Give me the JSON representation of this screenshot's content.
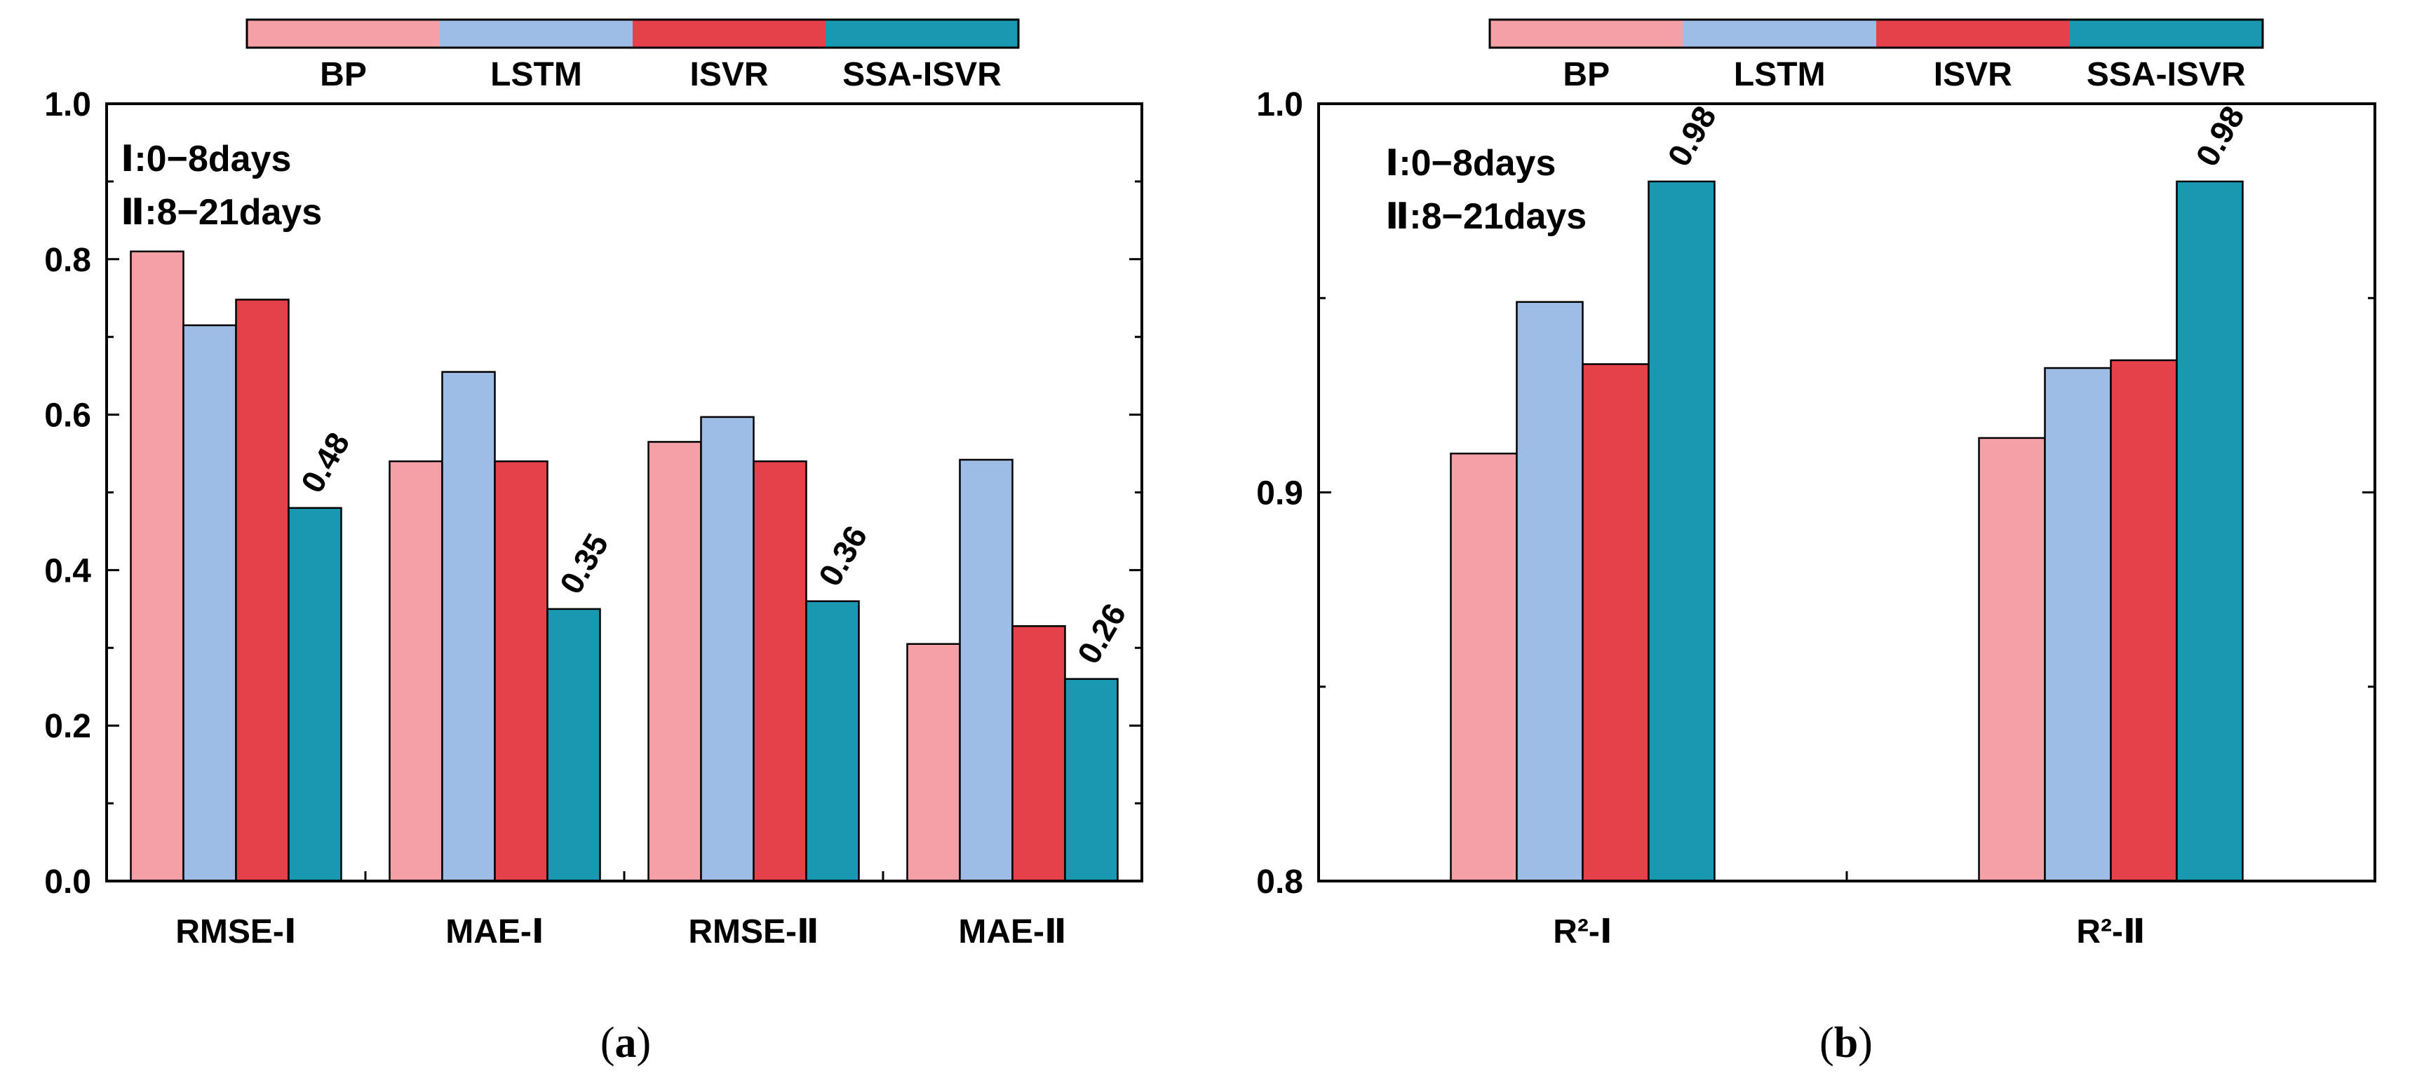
{
  "legend": [
    {
      "name": "BP",
      "color": "#F4A0A6"
    },
    {
      "name": "LSTM",
      "color": "#9DBDE6"
    },
    {
      "name": "ISVR",
      "color": "#E4414A"
    },
    {
      "name": "SSA-ISVR",
      "color": "#1A98B2"
    }
  ],
  "chart_data": [
    {
      "type": "bar",
      "panel": "a",
      "caption_open": "(",
      "caption_letter": "a",
      "caption_close": ")",
      "categories": [
        "RMSE-Ⅰ",
        "MAE-Ⅰ",
        "RMSE-Ⅱ",
        "MAE-Ⅱ"
      ],
      "series": [
        {
          "name": "BP",
          "values": [
            0.81,
            0.54,
            0.565,
            0.305
          ]
        },
        {
          "name": "LSTM",
          "values": [
            0.715,
            0.655,
            0.597,
            0.542
          ]
        },
        {
          "name": "ISVR",
          "values": [
            0.748,
            0.54,
            0.54,
            0.328
          ]
        },
        {
          "name": "SSA-ISVR",
          "values": [
            0.48,
            0.35,
            0.36,
            0.26
          ]
        }
      ],
      "data_labels": [
        "0.48",
        "0.35",
        "0.36",
        "0.26"
      ],
      "ylim": [
        0.0,
        1.0
      ],
      "yticks": [
        "0.0",
        "0.2",
        "0.4",
        "0.6",
        "0.8",
        "1.0"
      ],
      "annotation_lines": [
        "Ⅰ:0−8days",
        "Ⅱ:8−21days"
      ],
      "title": "",
      "xlabel": "",
      "ylabel": ""
    },
    {
      "type": "bar",
      "panel": "b",
      "caption_open": "(",
      "caption_letter": "b",
      "caption_close": ")",
      "categories": [
        "R²-Ⅰ",
        "R²-Ⅱ"
      ],
      "series": [
        {
          "name": "BP",
          "values": [
            0.91,
            0.914
          ]
        },
        {
          "name": "LSTM",
          "values": [
            0.949,
            0.932
          ]
        },
        {
          "name": "ISVR",
          "values": [
            0.933,
            0.934
          ]
        },
        {
          "name": "SSA-ISVR",
          "values": [
            0.98,
            0.98
          ]
        }
      ],
      "data_labels": [
        "0.98",
        "0.98"
      ],
      "ylim": [
        0.8,
        1.0
      ],
      "yticks": [
        "0.8",
        "0.9",
        "1.0"
      ],
      "annotation_lines": [
        "Ⅰ:0−8days",
        "Ⅱ:8−21days"
      ],
      "title": "",
      "xlabel": "",
      "ylabel": ""
    }
  ]
}
